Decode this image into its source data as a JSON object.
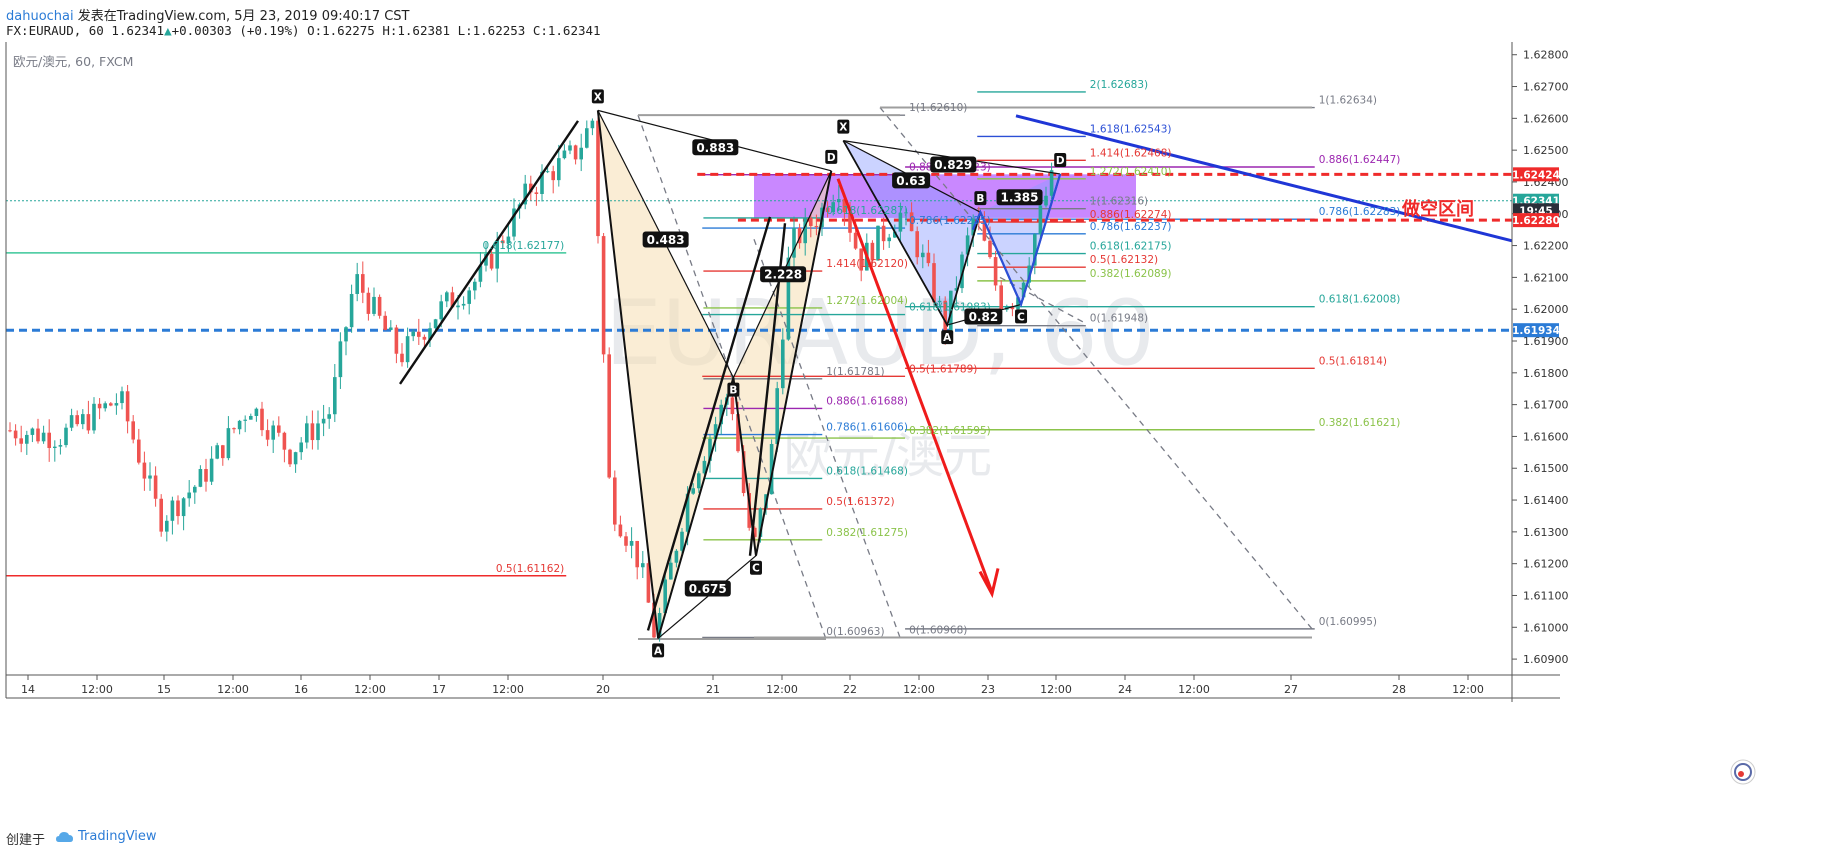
{
  "header": {
    "author": "dahuochai",
    "published": "发表在TradingView.com, 5月 23, 2019 09:40:17 CST",
    "symbol_line": "FX:EURAUD, 60",
    "last": "1.62341",
    "change": "+0.00303 (+0.19%)",
    "ohlc": "O:1.62275 H:1.62381 L:1.62253 C:1.62341"
  },
  "chart_data": {
    "type": "candlestick",
    "title": "欧元/澳元, 60, FXCM",
    "watermark_symbol": "EURAUD, 60",
    "watermark_name": "欧元/澳元",
    "y_ticks": [
      "1.62800",
      "1.62700",
      "1.62600",
      "1.62500",
      "1.62400",
      "1.62300",
      "1.62200",
      "1.62100",
      "1.62000",
      "1.61900",
      "1.61800",
      "1.61700",
      "1.61600",
      "1.61500",
      "1.61400",
      "1.61300",
      "1.61200",
      "1.61100",
      "1.61000",
      "1.60900"
    ],
    "ylim": [
      1.6085,
      1.6284
    ],
    "x_ticks": [
      "14",
      "12:00",
      "15",
      "12:00",
      "16",
      "12:00",
      "17",
      "12:00",
      "20",
      "21",
      "12:00",
      "22",
      "12:00",
      "23",
      "12:00",
      "24",
      "12:00",
      "27",
      "28",
      "12:00"
    ],
    "price_badges": [
      {
        "text": "1.62424",
        "y": 1.62424,
        "color": "#ef2b2b"
      },
      {
        "text": "1.62341",
        "y": 1.62341,
        "color": "#26a69a"
      },
      {
        "text": "19:45",
        "y": 1.62311,
        "color": "#2a2e39"
      },
      {
        "text": "1.62280",
        "y": 1.6228,
        "color": "#ef2b2b"
      },
      {
        "text": "1.61934",
        "y": 1.61934,
        "color": "#2b7bd6"
      }
    ],
    "annotation_short_zone": "做空区间",
    "horizontal_lines": [
      {
        "y": 1.62424,
        "color": "#ef2b2b",
        "style": "dashed",
        "x_from": 0.459,
        "x_to": 1.0
      },
      {
        "y": 1.6228,
        "color": "#ef2b2b",
        "style": "dashed",
        "x_from": 0.486,
        "x_to": 1.0
      },
      {
        "y": 1.61934,
        "color": "#2b7bd6",
        "style": "dashed",
        "x_from": 0.0,
        "x_to": 1.0
      },
      {
        "y": 1.62177,
        "color": "#3cc79a",
        "style": "solid",
        "x_from": 0.0,
        "x_to": 0.372
      },
      {
        "y": 1.61162,
        "color": "#ef2b2b",
        "style": "solid",
        "x_from": 0.0,
        "x_to": 0.372
      }
    ],
    "fib_labels": [
      {
        "text": "0.618(1.62177)",
        "x": 0.372,
        "y": 1.62177,
        "color": "#26a69a",
        "align": "end"
      },
      {
        "text": "0.5(1.61162)",
        "x": 0.372,
        "y": 1.61162,
        "color": "#e53935",
        "align": "end"
      },
      {
        "text": "2(1.62683)",
        "x": 0.717,
        "y": 1.62683,
        "color": "#26a69a",
        "align": "start"
      },
      {
        "text": "1(1.62610)",
        "x": 0.597,
        "y": 1.6261,
        "color": "#787b86",
        "align": "start"
      },
      {
        "text": "1(1.62634)",
        "x": 0.869,
        "y": 1.62634,
        "color": "#787b86",
        "align": "start"
      },
      {
        "text": "1.618(1.62543)",
        "x": 0.717,
        "y": 1.62543,
        "color": "#2b4fd6",
        "align": "start"
      },
      {
        "text": "1.414(1.62468)",
        "x": 0.717,
        "y": 1.62468,
        "color": "#e53935",
        "align": "start"
      },
      {
        "text": "0.886(1.62447)",
        "x": 0.869,
        "y": 1.62447,
        "color": "#9c27b0",
        "align": "start"
      },
      {
        "text": "0.886(1.62423)",
        "x": 0.597,
        "y": 1.62423,
        "color": "#9c27b0",
        "align": "start"
      },
      {
        "text": "1.272(1.62410)",
        "x": 0.717,
        "y": 1.6241,
        "color": "#8bc34a",
        "align": "start"
      },
      {
        "text": "1(1.62316)",
        "x": 0.717,
        "y": 1.62316,
        "color": "#787b86",
        "align": "start"
      },
      {
        "text": "0.618(1.62287)",
        "x": 0.542,
        "y": 1.62287,
        "color": "#26a69a",
        "align": "start"
      },
      {
        "text": "0.786(1.62283)",
        "x": 0.869,
        "y": 1.62283,
        "color": "#2b7bd6",
        "align": "start"
      },
      {
        "text": "0.886(1.62274)",
        "x": 0.717,
        "y": 1.62274,
        "color": "#e53935",
        "align": "start"
      },
      {
        "text": "0.786(1.62255)",
        "x": 0.597,
        "y": 1.62255,
        "color": "#2b7bd6",
        "align": "start"
      },
      {
        "text": "0.786(1.62237)",
        "x": 0.717,
        "y": 1.62237,
        "color": "#2b7bd6",
        "align": "start"
      },
      {
        "text": "0.618(1.62175)",
        "x": 0.717,
        "y": 1.62175,
        "color": "#26a69a",
        "align": "start"
      },
      {
        "text": "0.5(1.62132)",
        "x": 0.717,
        "y": 1.62132,
        "color": "#e53935",
        "align": "start"
      },
      {
        "text": "1.414(1.62120)",
        "x": 0.542,
        "y": 1.6212,
        "color": "#e53935",
        "align": "start"
      },
      {
        "text": "0.382(1.62089)",
        "x": 0.717,
        "y": 1.62089,
        "color": "#8bc34a",
        "align": "start"
      },
      {
        "text": "1.272(1.62004)",
        "x": 0.542,
        "y": 1.62004,
        "color": "#8bc34a",
        "align": "start"
      },
      {
        "text": "0.618(1.62008)",
        "x": 0.869,
        "y": 1.62008,
        "color": "#26a69a",
        "align": "start"
      },
      {
        "text": "0.618(1.61983)",
        "x": 0.597,
        "y": 1.61983,
        "color": "#26a69a",
        "align": "start"
      },
      {
        "text": "0(1.61948)",
        "x": 0.717,
        "y": 1.61948,
        "color": "#787b86",
        "align": "start"
      },
      {
        "text": "0.5(1.61814)",
        "x": 0.869,
        "y": 1.61814,
        "color": "#e53935",
        "align": "start"
      },
      {
        "text": "1(1.61781)",
        "x": 0.542,
        "y": 1.61781,
        "color": "#787b86",
        "align": "start"
      },
      {
        "text": "0.5(1.61789)",
        "x": 0.597,
        "y": 1.61789,
        "color": "#e53935",
        "align": "start"
      },
      {
        "text": "0.886(1.61688)",
        "x": 0.542,
        "y": 1.61688,
        "color": "#9c27b0",
        "align": "start"
      },
      {
        "text": "0.382(1.61621)",
        "x": 0.869,
        "y": 1.61621,
        "color": "#8bc34a",
        "align": "start"
      },
      {
        "text": "0.786(1.61606)",
        "x": 0.542,
        "y": 1.61606,
        "color": "#2b7bd6",
        "align": "start"
      },
      {
        "text": "0.382(1.61595)",
        "x": 0.597,
        "y": 1.61595,
        "color": "#8bc34a",
        "align": "start"
      },
      {
        "text": "0.618(1.61468)",
        "x": 0.542,
        "y": 1.61468,
        "color": "#26a69a",
        "align": "start"
      },
      {
        "text": "0.5(1.61372)",
        "x": 0.542,
        "y": 1.61372,
        "color": "#e53935",
        "align": "start"
      },
      {
        "text": "0.382(1.61275)",
        "x": 0.542,
        "y": 1.61275,
        "color": "#8bc34a",
        "align": "start"
      },
      {
        "text": "0(1.60963)",
        "x": 0.542,
        "y": 1.60963,
        "color": "#787b86",
        "align": "start"
      },
      {
        "text": "0(1.60968)",
        "x": 0.597,
        "y": 1.60968,
        "color": "#787b86",
        "align": "start"
      },
      {
        "text": "0(1.60995)",
        "x": 0.869,
        "y": 1.60995,
        "color": "#787b86",
        "align": "start"
      }
    ],
    "pattern_points": [
      {
        "label": "X",
        "x": 0.393,
        "y": 1.62625
      },
      {
        "label": "A",
        "x": 0.433,
        "y": 1.60965
      },
      {
        "label": "B",
        "x": 0.483,
        "y": 1.61785
      },
      {
        "label": "C",
        "x": 0.498,
        "y": 1.61225
      },
      {
        "label": "D",
        "x": 0.548,
        "y": 1.62435
      },
      {
        "label": "X",
        "x": 0.556,
        "y": 1.6253
      },
      {
        "label": "A",
        "x": 0.625,
        "y": 1.6195
      },
      {
        "label": "B",
        "x": 0.647,
        "y": 1.62305
      },
      {
        "label": "C",
        "x": 0.674,
        "y": 1.62015
      },
      {
        "label": "D",
        "x": 0.7,
        "y": 1.62425
      }
    ],
    "ratio_labels": [
      {
        "text": "0.883",
        "x": 0.471,
        "y": 1.62509
      },
      {
        "text": "0.483",
        "x": 0.438,
        "y": 1.62219
      },
      {
        "text": "2.228",
        "x": 0.516,
        "y": 1.6211
      },
      {
        "text": "0.675",
        "x": 0.466,
        "y": 1.61122
      },
      {
        "text": "0.829",
        "x": 0.629,
        "y": 1.62455
      },
      {
        "text": "0.63",
        "x": 0.601,
        "y": 1.62405
      },
      {
        "text": "1.385",
        "x": 0.673,
        "y": 1.62352
      },
      {
        "text": "0.82",
        "x": 0.649,
        "y": 1.61977
      }
    ]
  },
  "footer": {
    "made_with": "创建于",
    "brand": "TradingView"
  }
}
